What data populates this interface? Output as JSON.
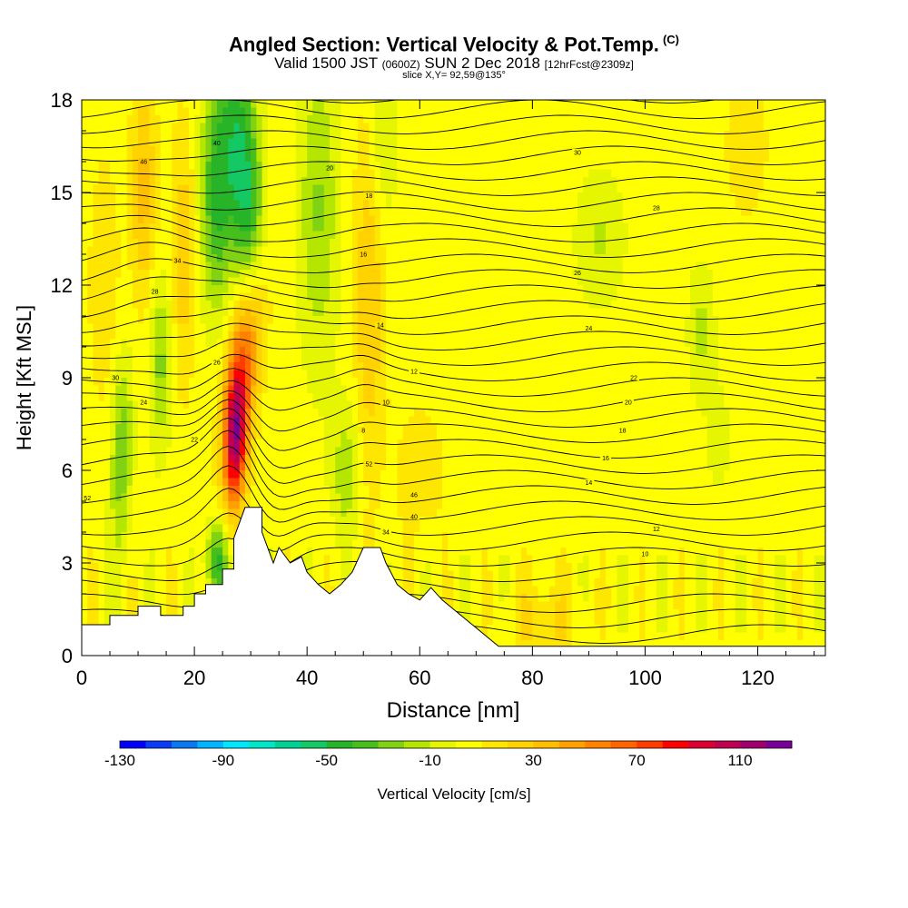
{
  "title": "Angled Section: Vertical Velocity & Pot.Temp.",
  "title_suffix": "(C)",
  "subtitle_a": "Valid 1500 JST",
  "subtitle_b": "(0600Z)",
  "subtitle_c": "SUN 2 Dec 2018",
  "subtitle_d": "[12hrFcst@2309z]",
  "slice_label": "slice X,Y= 92,59@135°",
  "chart_data": {
    "type": "heatmap",
    "xlabel": "Distance [nm]",
    "ylabel": "Height [Kft MSL]",
    "xlim": [
      0,
      132
    ],
    "ylim": [
      0,
      18
    ],
    "x_ticks": [
      0,
      20,
      40,
      60,
      80,
      100,
      120
    ],
    "y_ticks": [
      0,
      3,
      6,
      9,
      12,
      15,
      18
    ],
    "colorbar": {
      "label": "Vertical Velocity [cm/s]",
      "tick_labels": [
        "-130",
        "-90",
        "-50",
        "-10",
        "30",
        "70",
        "110"
      ],
      "range": [
        -130,
        130
      ],
      "colors": [
        "#0000ff",
        "#0a3cf5",
        "#0a78f0",
        "#00b4ff",
        "#00e6ff",
        "#00e6c8",
        "#00d296",
        "#14c864",
        "#28b428",
        "#46be1e",
        "#82d214",
        "#b4e600",
        "#e6f500",
        "#ffff00",
        "#ffe600",
        "#ffd200",
        "#ffbe00",
        "#ffa000",
        "#ff8200",
        "#ff6400",
        "#ff3c00",
        "#ff0000",
        "#dc0032",
        "#be0050",
        "#a0006e",
        "#780096"
      ]
    },
    "terrain_profile": [
      [
        0,
        1.0
      ],
      [
        5,
        1.0
      ],
      [
        5,
        1.3
      ],
      [
        10,
        1.3
      ],
      [
        10,
        1.6
      ],
      [
        14,
        1.6
      ],
      [
        14,
        1.3
      ],
      [
        18,
        1.3
      ],
      [
        18,
        1.6
      ],
      [
        20,
        1.6
      ],
      [
        20,
        2.0
      ],
      [
        22,
        2.0
      ],
      [
        22,
        2.3
      ],
      [
        25,
        2.3
      ],
      [
        25,
        2.8
      ],
      [
        27,
        2.8
      ],
      [
        27,
        3.8
      ],
      [
        29,
        4.8
      ],
      [
        32,
        4.8
      ],
      [
        32,
        4.0
      ],
      [
        34,
        3.0
      ],
      [
        35,
        3.5
      ],
      [
        37,
        3.0
      ],
      [
        39,
        3.2
      ],
      [
        40,
        2.7
      ],
      [
        42,
        2.3
      ],
      [
        44,
        2.0
      ],
      [
        46,
        2.3
      ],
      [
        48,
        2.7
      ],
      [
        50,
        3.5
      ],
      [
        53,
        3.5
      ],
      [
        54,
        3.0
      ],
      [
        56,
        2.3
      ],
      [
        58,
        2.0
      ],
      [
        60,
        1.8
      ],
      [
        62,
        2.2
      ],
      [
        64,
        1.8
      ],
      [
        66,
        1.5
      ],
      [
        68,
        1.2
      ],
      [
        70,
        0.9
      ],
      [
        72,
        0.6
      ],
      [
        74,
        0.3
      ],
      [
        132,
        0.3
      ]
    ],
    "theta_contour_labels": [
      "52",
      "46",
      "40",
      "34",
      "30",
      "28",
      "26",
      "24",
      "22",
      "20",
      "18",
      "16",
      "14",
      "12",
      "10",
      "8"
    ]
  }
}
